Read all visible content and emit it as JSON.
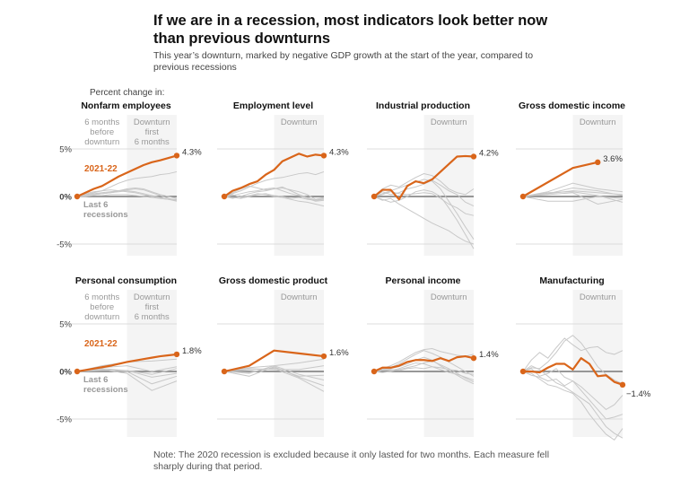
{
  "title_lines": [
    "If we are in a recession, most indicators look better now",
    "than previous downturns"
  ],
  "subtitle_lines": [
    "This year’s downturn, marked by negative GDP growth at the start of the year, compared to",
    "previous recessions"
  ],
  "note_lines": [
    "Note: The 2020 recession is excluded because it only lasted for two months. Each measure fell",
    "sharply during that period."
  ],
  "colors": {
    "current": "#d9651a",
    "past": "#c8c8c8",
    "shade": "#f4f4f4",
    "zero": "#777777",
    "grid": "#dddddd"
  },
  "chart_data": {
    "type": "line",
    "ylabel": "Percent change in:",
    "x_unit": "months relative to downturn start",
    "xlim": [
      -6,
      6
    ],
    "ylim": [
      -7,
      8
    ],
    "yticks": [
      5,
      0,
      -5
    ],
    "ytick_labels": [
      "5%",
      "0%",
      "-5%"
    ],
    "grid": true,
    "shaded_region": [
      0,
      6
    ],
    "labels": {
      "before": [
        "6 months",
        "before",
        "downturn"
      ],
      "during": [
        "Downturn",
        "first",
        "6 months"
      ],
      "downturn": "Downturn",
      "current_series": "2021-22",
      "past_series": [
        "Last 6",
        "recessions"
      ]
    },
    "panels": [
      {
        "title": "Nonfarm employees",
        "end_label": "4.3%",
        "current": {
          "x": [
            -6,
            -5,
            -4,
            -3,
            -2,
            -1,
            0,
            1,
            2,
            3,
            4,
            5,
            6
          ],
          "y": [
            0,
            0.4,
            0.8,
            1.1,
            1.6,
            2.1,
            2.5,
            2.9,
            3.3,
            3.6,
            3.8,
            4.05,
            4.3
          ]
        },
        "past_x": [
          -6,
          -5,
          -4,
          -3,
          -2,
          -1,
          0,
          1,
          2,
          3,
          4,
          5,
          6
        ],
        "past": [
          [
            0,
            0.2,
            0.4,
            0.6,
            1.0,
            1.4,
            1.7,
            1.9,
            2.0,
            2.1,
            2.3,
            2.4,
            2.6
          ],
          [
            0,
            0.2,
            0.3,
            0.4,
            0.5,
            0.6,
            0.7,
            0.8,
            0.7,
            0.4,
            0.1,
            -0.2,
            -0.4
          ],
          [
            0,
            0.1,
            0.2,
            0.3,
            0.4,
            0.5,
            0.6,
            0.5,
            0.3,
            0.1,
            -0.1,
            -0.3,
            -0.5
          ],
          [
            0,
            0.3,
            0.5,
            0.6,
            0.7,
            0.6,
            0.5,
            0.4,
            0.2,
            0,
            -0.2,
            -0.3,
            -0.3
          ],
          [
            0,
            0.1,
            0.2,
            0.3,
            0.4,
            0.6,
            0.8,
            0.9,
            0.8,
            0.5,
            0.2,
            0,
            -0.2
          ],
          [
            0,
            0,
            0.1,
            0.1,
            0.2,
            0.2,
            0.2,
            0.1,
            0,
            -0.1,
            -0.2,
            -0.3,
            -0.4
          ]
        ]
      },
      {
        "title": "Employment level",
        "end_label": "4.3%",
        "current": {
          "x": [
            -6,
            -5,
            -4,
            -3,
            -2,
            -1,
            0,
            1,
            2,
            3,
            4,
            5,
            6
          ],
          "y": [
            0,
            0.6,
            0.9,
            1.3,
            1.6,
            2.3,
            2.8,
            3.7,
            4.1,
            4.5,
            4.2,
            4.4,
            4.3
          ]
        },
        "past_x": [
          -6,
          -5,
          -4,
          -3,
          -2,
          -1,
          0,
          1,
          2,
          3,
          4,
          5,
          6
        ],
        "past": [
          [
            0,
            0.3,
            0.6,
            1.0,
            1.4,
            1.7,
            1.9,
            2.0,
            2.2,
            2.4,
            2.5,
            2.3,
            2.6
          ],
          [
            0,
            0.4,
            0.8,
            1.1,
            0.9,
            0.7,
            0.8,
            1.0,
            0.6,
            0.2,
            -0.1,
            -0.4,
            -0.2
          ],
          [
            0,
            -0.2,
            0,
            0.3,
            0.5,
            0.6,
            0.8,
            0.9,
            0.7,
            0.5,
            0.2,
            -0.3,
            -0.1
          ],
          [
            0,
            0.2,
            -0.1,
            0.1,
            0.3,
            0.2,
            0,
            -0.1,
            -0.3,
            -0.5,
            -0.6,
            -0.8,
            -1.0
          ],
          [
            0,
            0.1,
            0.3,
            0.5,
            0.6,
            0.8,
            0.9,
            0.6,
            0.3,
            0.1,
            -0.2,
            -0.5,
            -0.4
          ],
          [
            0,
            -0.1,
            -0.2,
            0,
            0.2,
            0.3,
            0.1,
            0,
            -0.2,
            -0.1,
            -0.3,
            -0.4,
            -0.3
          ]
        ]
      },
      {
        "title": "Industrial production",
        "end_label": "4.2%",
        "current": {
          "x": [
            -6,
            -5,
            -4,
            -3,
            -2,
            -1,
            0,
            1,
            2,
            3,
            4,
            5,
            6
          ],
          "y": [
            0,
            0.7,
            0.7,
            -0.3,
            1.1,
            1.6,
            1.4,
            1.8,
            2.6,
            3.4,
            4.2,
            4.25,
            4.2
          ]
        },
        "past_x": [
          -6,
          -5,
          -4,
          -3,
          -2,
          -1,
          0,
          1,
          2,
          3,
          4,
          5,
          6
        ],
        "past": [
          [
            0,
            0.8,
            1.2,
            1.0,
            1.5,
            2.0,
            2.4,
            2.2,
            1.6,
            0.8,
            0.4,
            0.2,
            0.8
          ],
          [
            0,
            0.3,
            0.6,
            0.9,
            1.2,
            1.5,
            1.8,
            1.6,
            0.8,
            -0.5,
            -1.8,
            -3.2,
            -4.5
          ],
          [
            0,
            -0.3,
            -0.6,
            -0.4,
            0,
            0.5,
            0.7,
            0.5,
            0,
            -1.2,
            -2.5,
            -4.0,
            -5.5
          ],
          [
            0,
            -0.4,
            -0.2,
            -0.8,
            -1.3,
            -1.8,
            -2.3,
            -2.8,
            -3.2,
            -3.6,
            -4.2,
            -4.7,
            -5.0
          ],
          [
            0,
            0.5,
            0.2,
            0.4,
            0.8,
            1.0,
            1.3,
            1.7,
            1.2,
            0.6,
            0.2,
            -0.6,
            -1.0
          ],
          [
            0,
            0.2,
            0.5,
            0.3,
            0.2,
            0.3,
            0.4,
            0.3,
            -0.2,
            -0.8,
            -1.2,
            -1.8,
            -2.0
          ]
        ]
      },
      {
        "title": "Gross domestic income",
        "end_label": "3.6%",
        "current": {
          "x": [
            -6,
            0,
            3
          ],
          "y": [
            0,
            3.0,
            3.6
          ]
        },
        "past_x": [
          -6,
          -3,
          0,
          3,
          6
        ],
        "past": [
          [
            0,
            0.3,
            0.6,
            0.4,
            0.2
          ],
          [
            0,
            0.5,
            1.4,
            0.8,
            0.5
          ],
          [
            0,
            0.4,
            0.5,
            0.1,
            -0.6
          ],
          [
            0,
            -0.5,
            -0.5,
            0,
            -0.2
          ],
          [
            0,
            0.2,
            0.4,
            -0.8,
            -0.3
          ],
          [
            0,
            0.3,
            0.9,
            0.6,
            0.1
          ]
        ]
      },
      {
        "title": "Personal consumption",
        "end_label": "1.8%",
        "current": {
          "x": [
            -6,
            -5,
            -4,
            -3,
            -2,
            -1,
            0,
            1,
            2,
            3,
            4,
            5,
            6
          ],
          "y": [
            0,
            0.15,
            0.3,
            0.45,
            0.6,
            0.8,
            1.0,
            1.15,
            1.3,
            1.45,
            1.6,
            1.7,
            1.8
          ]
        },
        "past_x": [
          -6,
          -3,
          0,
          3,
          6
        ],
        "past": [
          [
            0,
            0.6,
            1.0,
            1.1,
            1.3
          ],
          [
            0,
            0.4,
            0.6,
            0,
            0.5
          ],
          [
            0,
            0.2,
            0,
            -1.3,
            -0.5
          ],
          [
            0,
            0.3,
            0.1,
            -0.6,
            -0.2
          ],
          [
            0,
            0.2,
            -0.2,
            -2.0,
            -1.0
          ],
          [
            0,
            0.1,
            0.1,
            -0.3,
            0.3
          ]
        ]
      },
      {
        "title": "Gross domestic product",
        "end_label": "1.6%",
        "current": {
          "x": [
            -6,
            -3,
            0,
            3,
            6
          ],
          "y": [
            0,
            0.6,
            2.2,
            1.9,
            1.6
          ]
        },
        "past_x": [
          -6,
          -3,
          0,
          3,
          6
        ],
        "past": [
          [
            0,
            0.4,
            0.6,
            0.9,
            1.3
          ],
          [
            0,
            -0.5,
            0.5,
            -0.6,
            -1.5
          ],
          [
            0,
            0.2,
            0.3,
            -0.7,
            -2.1
          ],
          [
            0,
            -0.2,
            0.6,
            -0.3,
            -0.9
          ],
          [
            0,
            0.3,
            0.2,
            0.2,
            0.6
          ],
          [
            0,
            -0.1,
            0.4,
            -0.5,
            -0.4
          ]
        ]
      },
      {
        "title": "Personal income",
        "end_label": "1.4%",
        "current": {
          "x": [
            -6,
            -5,
            -4,
            -3,
            -2,
            -1,
            0,
            1,
            2,
            3,
            4,
            5,
            6
          ],
          "y": [
            0,
            0.4,
            0.4,
            0.6,
            1.0,
            1.2,
            1.2,
            1.1,
            1.4,
            1.1,
            1.5,
            1.6,
            1.4
          ]
        },
        "past_x": [
          -6,
          -5,
          -4,
          -3,
          -2,
          -1,
          0,
          1,
          2,
          3,
          4,
          5,
          6
        ],
        "past": [
          [
            0,
            0.3,
            0.6,
            1.0,
            1.5,
            2.0,
            2.3,
            2.4,
            2.1,
            1.9,
            1.7,
            1.6,
            1.8
          ],
          [
            0,
            0.2,
            0.4,
            0.8,
            1.3,
            1.8,
            2.2,
            1.9,
            1.5,
            1.0,
            0.5,
            0,
            -0.5
          ],
          [
            0,
            0.1,
            0.3,
            0.5,
            0.8,
            1.2,
            1.5,
            1.2,
            0.6,
            0.1,
            -0.4,
            -0.9,
            -1.3
          ],
          [
            0,
            0.2,
            0.1,
            0.3,
            0.6,
            0.9,
            0.8,
            0.5,
            0.2,
            -0.1,
            -0.3,
            -0.6,
            -0.9
          ],
          [
            0,
            -0.1,
            0,
            0.2,
            0.4,
            0.6,
            0.9,
            1.1,
            0.7,
            0.3,
            -0.2,
            -0.7,
            -1.1
          ],
          [
            0,
            0.1,
            0.2,
            0.1,
            0.3,
            0.4,
            0.3,
            0.5,
            0.4,
            0.2,
            0.1,
            -0.2,
            -0.3
          ]
        ]
      },
      {
        "title": "Manufacturing",
        "end_label": "−1.4%",
        "current": {
          "x": [
            -6,
            -5,
            -4,
            -3,
            -2,
            -1,
            0,
            1,
            2,
            3,
            4,
            5,
            6
          ],
          "y": [
            0,
            0,
            -0.1,
            0.4,
            0.8,
            0.8,
            0.2,
            1.4,
            0.8,
            -0.5,
            -0.4,
            -1.1,
            -1.4
          ]
        },
        "past_x": [
          -6,
          -5,
          -4,
          -3,
          -2,
          -1,
          0,
          1,
          2,
          3,
          4,
          5,
          6
        ],
        "past": [
          [
            0,
            1.2,
            2.0,
            1.4,
            2.5,
            3.5,
            2.8,
            2.2,
            2.5,
            2.6,
            2.0,
            1.8,
            2.2
          ],
          [
            0,
            0.4,
            0.3,
            1.0,
            2.0,
            3.2,
            3.8,
            3.0,
            1.8,
            0.5,
            -0.3,
            -0.9,
            -1.3
          ],
          [
            0,
            -0.4,
            -0.6,
            -1.0,
            -0.8,
            -1.5,
            -1.0,
            -1.6,
            -2.4,
            -3.2,
            -4.0,
            -3.5,
            -2.5
          ],
          [
            0,
            0.6,
            0.2,
            -0.5,
            -1.2,
            -1.6,
            -2.2,
            -2.8,
            -3.4,
            -4.6,
            -5.8,
            -6.5,
            -7.0
          ],
          [
            0,
            0.3,
            -0.5,
            -0.2,
            0.3,
            -0.6,
            -1.0,
            -2.0,
            -3.0,
            -4.0,
            -5.0,
            -4.8,
            -4.5
          ],
          [
            0,
            -0.2,
            -0.8,
            -1.4,
            -1.6,
            -2.0,
            -2.3,
            -3.2,
            -4.5,
            -5.6,
            -6.6,
            -7.2,
            -6.0
          ]
        ]
      }
    ]
  }
}
